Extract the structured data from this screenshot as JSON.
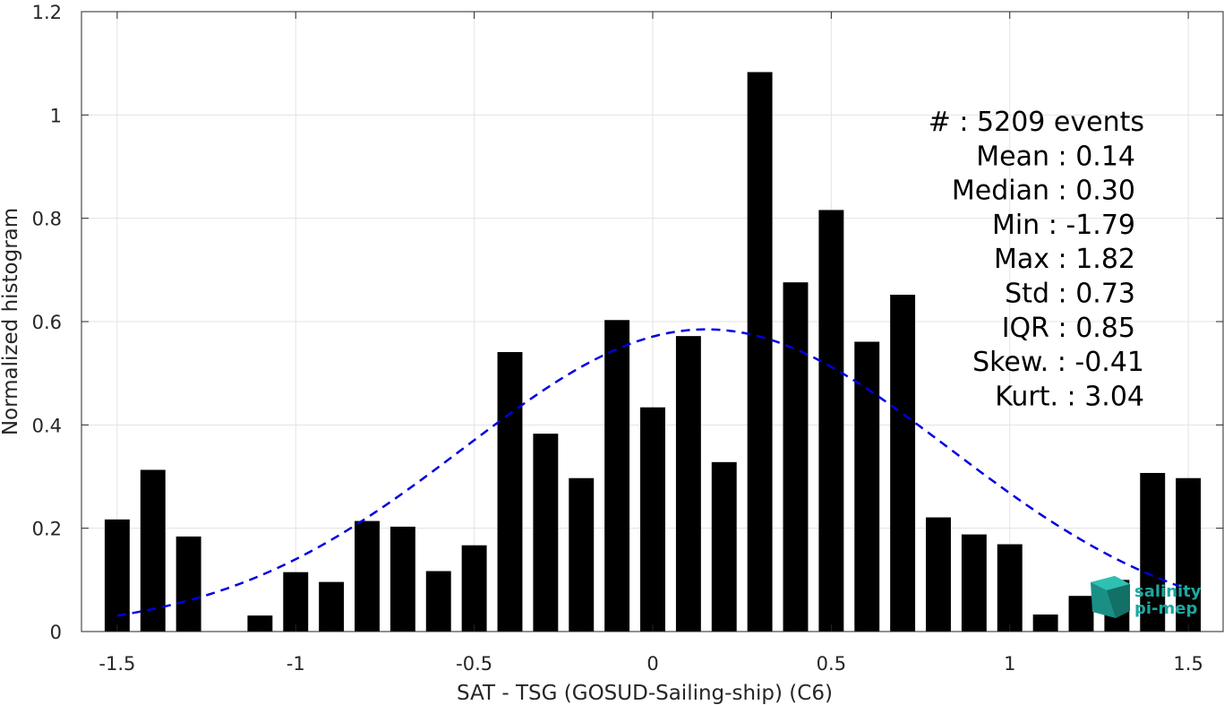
{
  "chart_data": {
    "type": "bar",
    "xlabel": "SAT - TSG (GOSUD-Sailing-ship) (C6)",
    "ylabel": "Normalized histogram",
    "xlim": [
      -1.6,
      1.6
    ],
    "ylim": [
      0,
      1.2
    ],
    "grid": true,
    "bar_width": 0.07,
    "x_ticks": [
      {
        "value": -1.5,
        "label": "-1.5"
      },
      {
        "value": -1,
        "label": "-1"
      },
      {
        "value": -0.5,
        "label": "-0.5"
      },
      {
        "value": 0,
        "label": "0"
      },
      {
        "value": 0.5,
        "label": "0.5"
      },
      {
        "value": 1,
        "label": "1"
      },
      {
        "value": 1.5,
        "label": "1.5"
      }
    ],
    "y_ticks": [
      {
        "value": 0,
        "label": "0"
      },
      {
        "value": 0.2,
        "label": "0.2"
      },
      {
        "value": 0.4,
        "label": "0.4"
      },
      {
        "value": 0.6,
        "label": "0.6"
      },
      {
        "value": 0.8,
        "label": "0.8"
      },
      {
        "value": 1,
        "label": "1"
      },
      {
        "value": 1.2,
        "label": "1.2"
      }
    ],
    "bars": {
      "x": [
        -1.5,
        -1.4,
        -1.3,
        -1.2,
        -1.1,
        -1.0,
        -0.9,
        -0.8,
        -0.7,
        -0.6,
        -0.5,
        -0.4,
        -0.3,
        -0.2,
        -0.1,
        0.0,
        0.1,
        0.2,
        0.3,
        0.4,
        0.5,
        0.6,
        0.7,
        0.8,
        0.9,
        1.0,
        1.1,
        1.2,
        1.3,
        1.4,
        1.5
      ],
      "values": [
        0.217,
        0.313,
        0.184,
        0,
        0.031,
        0.115,
        0.096,
        0.214,
        0.203,
        0.117,
        0.167,
        0.541,
        0.383,
        0.297,
        0.603,
        0.434,
        0.572,
        0.328,
        1.083,
        0.676,
        0.816,
        0.561,
        0.652,
        0.221,
        0.188,
        0.169,
        0.033,
        0.069,
        0.1,
        0.307,
        0.297
      ],
      "color": "#000000"
    },
    "fit_curve": {
      "style": "dashed",
      "color": "#0000e0",
      "mean": 0.15,
      "std": 0.68,
      "peak": 0.585,
      "x_range": [
        -1.5,
        1.5
      ]
    },
    "stats": [
      {
        "label": "#  ",
        "value": ": 5209 events"
      },
      {
        "label": "Mean ",
        "value": ": 0.14"
      },
      {
        "label": "Median ",
        "value": ": 0.30"
      },
      {
        "label": "Min ",
        "value": ": -1.79"
      },
      {
        "label": "Max ",
        "value": ": 1.82"
      },
      {
        "label": "Std ",
        "value": ": 0.73"
      },
      {
        "label": "IQR ",
        "value": ": 0.85"
      },
      {
        "label": "Skew. ",
        "value": ": -0.41"
      },
      {
        "label": "Kurt. ",
        "value": ": 3.04"
      }
    ],
    "logo": {
      "line1": "salinity",
      "line2": "pi-mep",
      "color": "#1aa8a0"
    }
  }
}
